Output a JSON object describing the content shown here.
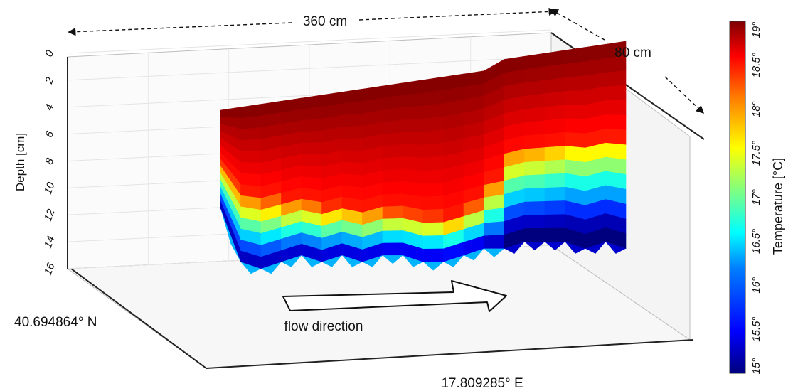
{
  "chart_data": {
    "type": "heatmap",
    "dims": {
      "length": "360 cm",
      "width": "80 cm"
    },
    "coords": {
      "lat": "40.694864° N",
      "lon": "17.809285° E"
    },
    "annotation": "flow direction",
    "y_axis": {
      "label": "Depth [cm]",
      "ticks": [
        "0",
        "2",
        "4",
        "6",
        "8",
        "10",
        "12",
        "14",
        "16"
      ],
      "range": [
        0,
        16
      ]
    },
    "colorbar": {
      "label": "Temperature [°C]",
      "ticks": [
        "15°",
        "15.5°",
        "16°",
        "16.5°",
        "17°",
        "17.5°",
        "18°",
        "18.5°",
        "19°"
      ],
      "range": [
        15,
        19
      ],
      "colormap": [
        "#00007f",
        "#0000ff",
        "#0080ff",
        "#00ffff",
        "#80ff80",
        "#ffff00",
        "#ff8000",
        "#ff0000",
        "#7f0000"
      ]
    },
    "surface_profile": {
      "x_fraction": [
        0.0,
        0.05,
        0.1,
        0.15,
        0.2,
        0.25,
        0.3,
        0.35,
        0.4,
        0.45,
        0.5,
        0.55,
        0.6,
        0.65,
        0.7,
        0.75,
        0.8,
        0.85,
        0.9,
        0.95,
        1.0
      ],
      "warm_depth_cm": [
        5.0,
        9.0,
        8.0,
        10.0,
        9.0,
        10.5,
        10.0,
        11.0,
        10.5,
        11.5,
        11.0,
        12.0,
        11.5,
        10.0,
        8.0,
        7.0,
        7.5,
        6.5,
        7.0,
        6.5,
        7.0
      ],
      "max_depth_cm": [
        11.5,
        15.5,
        16.0,
        15.5,
        15.0,
        15.5,
        15.0,
        15.5,
        15.0,
        15.0,
        15.5,
        15.5,
        15.0,
        14.5,
        14.5,
        14.0,
        14.0,
        14.0,
        14.5,
        14.0,
        14.5
      ]
    }
  }
}
